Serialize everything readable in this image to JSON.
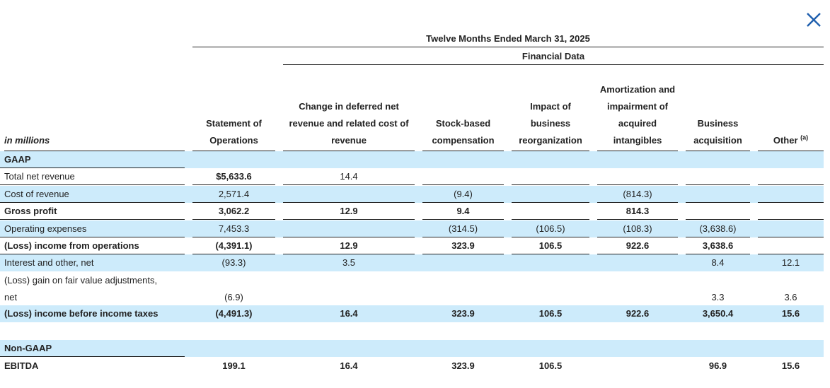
{
  "table": {
    "title": "Twelve Months Ended March 31, 2025",
    "subtitle": "Financial Data",
    "unit_label": "in millions",
    "columns": [
      "Statement of Operations",
      "Change in deferred net revenue and related cost of revenue",
      "Stock-based compensation",
      "Impact of business reorganization",
      "Amortization and impairment of acquired intangibles",
      "Business acquisition",
      "Other"
    ],
    "other_footnote": "(a)",
    "sections": {
      "gaap": "GAAP",
      "non_gaap": "Non-GAAP"
    },
    "rows": [
      {
        "label": "Total net revenue",
        "values": [
          "$5,633.6",
          "14.4",
          "",
          "",
          "",
          "",
          ""
        ]
      },
      {
        "label": "Cost of revenue",
        "values": [
          "2,571.4",
          "",
          "(9.4)",
          "",
          "(814.3)",
          "",
          ""
        ]
      },
      {
        "label": "Gross profit",
        "values": [
          "3,062.2",
          "12.9",
          "9.4",
          "",
          "814.3",
          "",
          ""
        ]
      },
      {
        "label": "Operating expenses",
        "values": [
          "7,453.3",
          "",
          "(314.5)",
          "(106.5)",
          "(108.3)",
          "(3,638.6)",
          ""
        ]
      },
      {
        "label": "(Loss) income from operations",
        "values": [
          "(4,391.1)",
          "12.9",
          "323.9",
          "106.5",
          "922.6",
          "3,638.6",
          ""
        ]
      },
      {
        "label": "Interest and other, net",
        "values": [
          "(93.3)",
          "3.5",
          "",
          "",
          "",
          "8.4",
          "12.1"
        ]
      },
      {
        "label_line1": "(Loss) gain on fair value adjustments,",
        "label_line2": "net",
        "values": [
          "(6.9)",
          "",
          "",
          "",
          "",
          "3.3",
          "3.6"
        ]
      },
      {
        "label": "(Loss) income before income taxes",
        "values": [
          "(4,491.3)",
          "16.4",
          "323.9",
          "106.5",
          "922.6",
          "3,650.4",
          "15.6"
        ]
      },
      {
        "label": "EBITDA",
        "values": [
          "199.1",
          "16.4",
          "323.9",
          "106.5",
          "",
          "96.9",
          "15.6"
        ]
      }
    ]
  },
  "icons": {
    "close": "close-icon"
  }
}
